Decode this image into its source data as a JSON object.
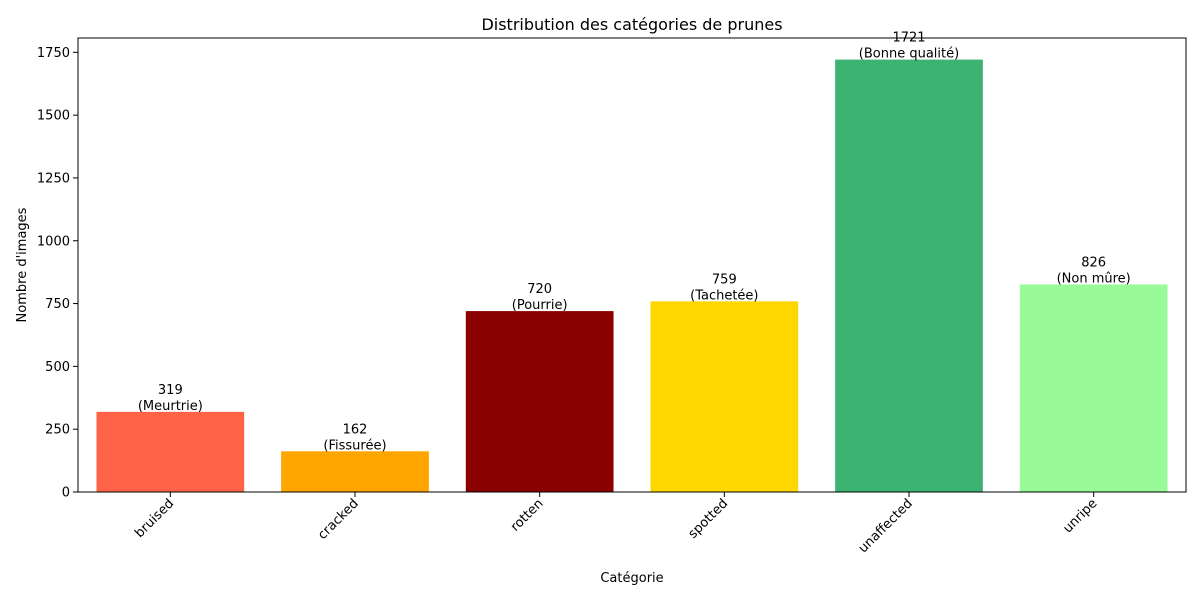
{
  "chart_data": {
    "type": "bar",
    "title": "Distribution des catégories de prunes",
    "xlabel": "Catégorie",
    "ylabel": "Nombre d'images",
    "categories": [
      "bruised",
      "cracked",
      "rotten",
      "spotted",
      "unaffected",
      "unripe"
    ],
    "values": [
      319,
      162,
      720,
      759,
      1721,
      826
    ],
    "annotations": [
      "(Meurtrie)",
      "(Fissurée)",
      "(Pourrie)",
      "(Tachetée)",
      "(Bonne qualité)",
      "(Non mûre)"
    ],
    "colors": [
      "#ff6347",
      "#ffa500",
      "#8b0000",
      "#ffd700",
      "#3cb371",
      "#98fb98"
    ],
    "ylim": [
      0,
      1807
    ],
    "yticks": [
      0,
      250,
      500,
      750,
      1000,
      1250,
      1500,
      1750
    ],
    "grid": false,
    "legend": "none"
  }
}
